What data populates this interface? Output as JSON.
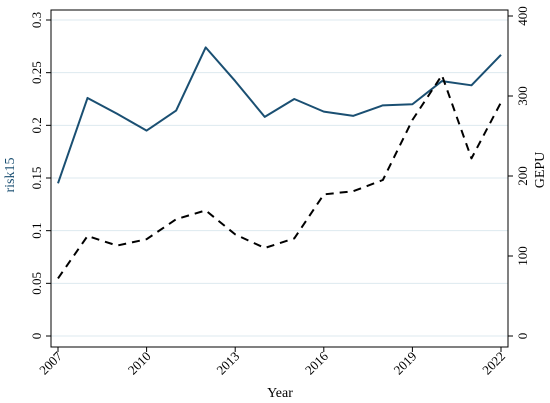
{
  "chart_data": {
    "type": "line",
    "xlabel": "Year",
    "ylabel_left": "risk15",
    "ylabel_right": "GEPU",
    "x_ticks": [
      "2007",
      "2010",
      "2013",
      "2016",
      "2019",
      "2022"
    ],
    "y_left_ticks": [
      "0",
      "0.05",
      "0.1",
      "0.15",
      "0.2",
      "0.25",
      "0.3"
    ],
    "y_right_ticks": [
      "0",
      "100",
      "200",
      "300",
      "400"
    ],
    "xlim": [
      2007,
      2022
    ],
    "ylim_left": [
      0,
      0.3
    ],
    "ylim_right": [
      0,
      400
    ],
    "grid": true,
    "x": [
      2007,
      2008,
      2009,
      2010,
      2011,
      2012,
      2013,
      2014,
      2015,
      2016,
      2017,
      2018,
      2019,
      2020,
      2021,
      2022
    ],
    "series": [
      {
        "axis": "left",
        "style": "solid",
        "color": "#1a4f72",
        "values": [
          0.145,
          0.226,
          0.211,
          0.195,
          0.214,
          0.274,
          0.242,
          0.208,
          0.225,
          0.213,
          0.209,
          0.219,
          0.22,
          0.242,
          0.238,
          0.267
        ]
      },
      {
        "axis": "right",
        "style": "dashed",
        "color": "#000000",
        "values": [
          72,
          125,
          113,
          121,
          146,
          157,
          127,
          110,
          122,
          177,
          181,
          195,
          270,
          326,
          222,
          292
        ]
      }
    ]
  },
  "colors": {
    "left_axis_title": "#1a4f72",
    "grid": "#dde9ef"
  }
}
